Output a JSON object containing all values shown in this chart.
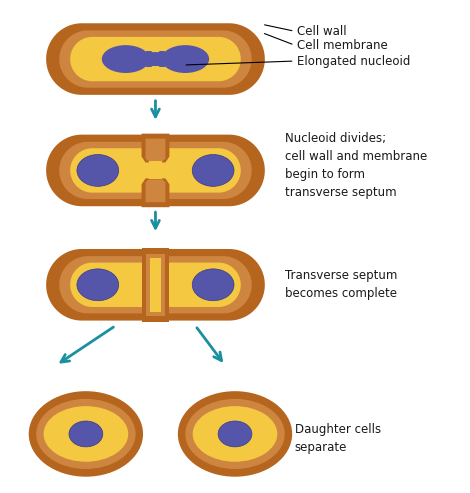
{
  "bg_color": "#ffffff",
  "wall_color": "#b5651d",
  "mem_color": "#cd8540",
  "int_color": "#f5c842",
  "nuc_color": "#5555aa",
  "nuc_edge": "#3a3a88",
  "arrow_color": "#1a8fa0",
  "text_color": "#1a1a1a",
  "label_fontsize": 8.5,
  "labels": {
    "cell_wall": "Cell wall",
    "cell_membrane": "Cell membrane",
    "elongated_nucleoid": "Elongated nucleoid",
    "step2": "Nucleoid divides;\ncell wall and membrane\nbegin to form\ntransverse septum",
    "step3": "Transverse septum\nbecomes complete",
    "step4": "Daughter cells\nseparate"
  }
}
